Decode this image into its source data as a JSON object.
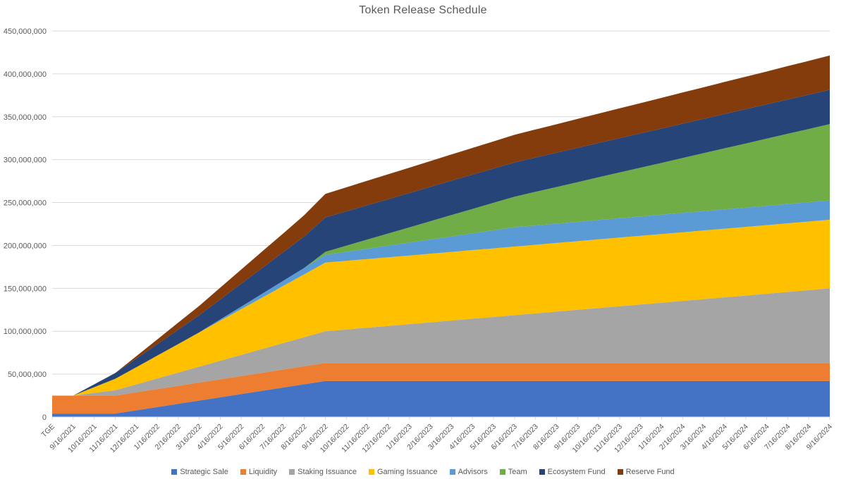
{
  "chart_data": {
    "type": "area",
    "stacked": true,
    "title": "Token Release Schedule",
    "xlabel": "",
    "ylabel": "",
    "values_unit": "millions_of_tokens",
    "ylim": [
      0,
      450000000
    ],
    "grid": "horizontal",
    "legend_position": "bottom",
    "y_axis": {
      "tick_values": [
        0,
        50,
        100,
        150,
        200,
        250,
        300,
        350,
        400,
        450
      ],
      "ticks": [
        "0",
        "50,000,000",
        "100,000,000",
        "150,000,000",
        "200,000,000",
        "250,000,000",
        "300,000,000",
        "350,000,000",
        "400,000,000",
        "450,000,000"
      ]
    },
    "x_labels": [
      "TGE",
      "9/16/2021",
      "10/16/2021",
      "11/16/2021",
      "12/16/2021",
      "1/16/2022",
      "2/16/2022",
      "3/16/2022",
      "4/16/2022",
      "5/16/2022",
      "6/16/2022",
      "7/16/2022",
      "8/16/2022",
      "9/16/2022",
      "10/16/2022",
      "11/16/2022",
      "12/16/2022",
      "1/16/2023",
      "2/16/2023",
      "3/16/2023",
      "4/16/2023",
      "5/16/2023",
      "6/16/2023",
      "7/16/2023",
      "8/16/2023",
      "9/16/2023",
      "10/16/2023",
      "11/16/2023",
      "12/16/2023",
      "1/16/2024",
      "2/16/2024",
      "3/16/2024",
      "4/16/2024",
      "5/16/2024",
      "6/16/2024",
      "7/16/2024",
      "8/16/2024",
      "9/16/2024"
    ],
    "series": [
      {
        "name": "Strategic Sale",
        "color": "#4472C4",
        "values": [
          4,
          4,
          4,
          4,
          7.8,
          11.6,
          15.4,
          19.2,
          23,
          26.8,
          30.6,
          34.4,
          38.2,
          42,
          42,
          42,
          42,
          42,
          42,
          42,
          42,
          42,
          42,
          42,
          42,
          42,
          42,
          42,
          42,
          42,
          42,
          42,
          42,
          42,
          42,
          42,
          42,
          42
        ]
      },
      {
        "name": "Liquidity",
        "color": "#ED7D31",
        "values": [
          21,
          21,
          21,
          21,
          21,
          21,
          21,
          21,
          21,
          21,
          21,
          21,
          21,
          21,
          21,
          21,
          21,
          21,
          21,
          21,
          21,
          21,
          21,
          21,
          21,
          21,
          21,
          21,
          21,
          21,
          21,
          21,
          21,
          21,
          21,
          21,
          21,
          21
        ]
      },
      {
        "name": "Staking Issuance",
        "color": "#A5A5A5",
        "values": [
          0,
          0,
          3.1,
          6.2,
          9.2,
          12.3,
          15.4,
          18.5,
          21.6,
          24.7,
          27.7,
          30.8,
          33.9,
          37,
          39.1,
          41.2,
          43.2,
          45.3,
          47.4,
          49.5,
          51.6,
          53.6,
          55.7,
          57.8,
          59.9,
          62,
          64.1,
          66.2,
          68.2,
          70.3,
          72.4,
          74.5,
          76.6,
          78.6,
          80.7,
          82.8,
          84.9,
          87
        ]
      },
      {
        "name": "Gaming Issuance",
        "color": "#FFC000",
        "values": [
          0,
          0,
          6.7,
          13.3,
          20,
          26.7,
          33.3,
          40,
          46.7,
          53.3,
          60,
          66.7,
          73.3,
          80,
          80,
          80,
          80,
          80,
          80,
          80,
          80,
          80,
          80,
          80,
          80,
          80,
          80,
          80,
          80,
          80,
          80,
          80,
          80,
          80,
          80,
          80,
          80,
          80
        ]
      },
      {
        "name": "Advisors",
        "color": "#5B9BD5",
        "values": [
          0,
          0,
          0,
          0,
          0,
          0,
          0,
          0,
          1.5,
          3,
          4.5,
          6,
          7.5,
          9,
          10.5,
          12,
          13.5,
          15,
          16.5,
          18,
          19.5,
          21,
          22.5,
          22.5,
          22.5,
          22.5,
          22.5,
          22.5,
          22.5,
          22.5,
          22.5,
          22.5,
          22.5,
          22.5,
          22.5,
          22.5,
          22.5,
          22.5
        ]
      },
      {
        "name": "Team",
        "color": "#70AD47",
        "values": [
          0,
          0,
          0,
          0,
          0,
          0,
          0,
          0,
          0,
          0,
          0,
          0,
          0,
          3.6,
          7.2,
          10.7,
          14.3,
          17.8,
          21.4,
          25,
          28.5,
          32.1,
          35.6,
          39.2,
          42.7,
          46.3,
          49.9,
          53.4,
          57,
          60.5,
          64.1,
          67.6,
          71.2,
          74.8,
          78.3,
          81.9,
          85.4,
          89
        ]
      },
      {
        "name": "Ecosystem Fund",
        "color": "#264478",
        "values": [
          0,
          0,
          3.3,
          6.7,
          10,
          13.3,
          16.7,
          20,
          23.3,
          26.7,
          30,
          33.3,
          36.7,
          40,
          40,
          40,
          40,
          40,
          40,
          40,
          40,
          40,
          40,
          40,
          40,
          40,
          40,
          40,
          40,
          40,
          40,
          40,
          40,
          40,
          40,
          40,
          40,
          40
        ]
      },
      {
        "name": "Reserve Fund",
        "color": "#843C0C",
        "values": [
          0,
          0,
          0,
          0,
          2.8,
          5.5,
          8.3,
          11,
          13.8,
          16.5,
          19.3,
          22,
          24.8,
          27.5,
          28,
          28.6,
          29.1,
          29.6,
          30.1,
          30.6,
          31.1,
          31.6,
          32.2,
          32.7,
          33.2,
          33.7,
          34.2,
          34.7,
          35.2,
          35.8,
          36.3,
          36.8,
          37.3,
          37.8,
          38.3,
          38.9,
          39.4,
          40
        ]
      }
    ],
    "colors": {
      "gridline": "#d9d9d9",
      "axis": "#d9d9d9",
      "axis_text": "#595959",
      "title_text": "#595959",
      "background": "#ffffff"
    }
  }
}
